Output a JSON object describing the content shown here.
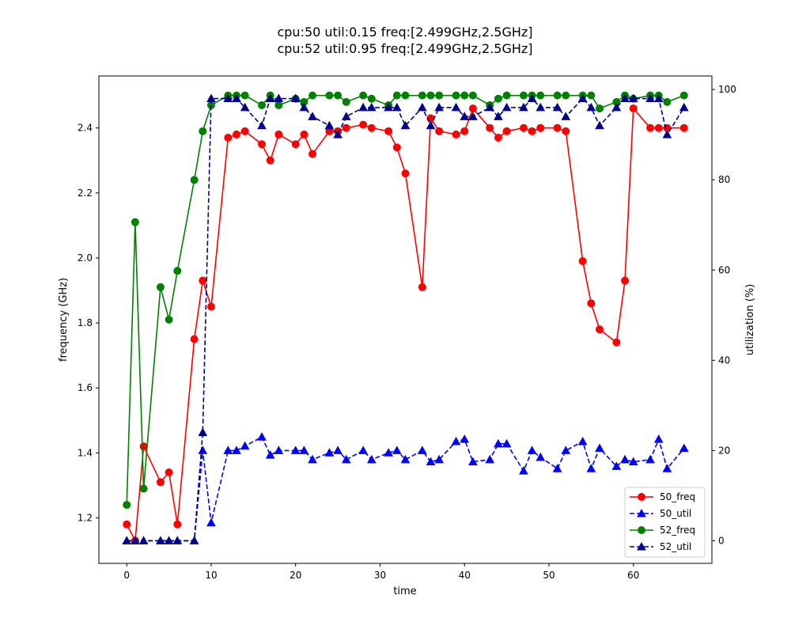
{
  "chart_data": {
    "type": "line",
    "title_lines": [
      "cpu:50 util:0.15 freq:[2.499GHz,2.5GHz]",
      "cpu:52 util:0.95 freq:[2.499GHz,2.5GHz]"
    ],
    "xlabel": "time",
    "ylabel_left": "frequency (GHz)",
    "ylabel_right": "utilization (%)",
    "xlim": [
      -3.3,
      69.3
    ],
    "ylim_left": [
      1.06,
      2.56
    ],
    "ylim_right": [
      -5,
      103
    ],
    "xticks": [
      0,
      10,
      20,
      30,
      40,
      50,
      60
    ],
    "yticks_left": [
      1.2,
      1.4,
      1.6,
      1.8,
      2.0,
      2.2,
      2.4
    ],
    "yticks_right": [
      0,
      20,
      40,
      60,
      80,
      100
    ],
    "legend_position": "lower right",
    "series": [
      {
        "name": "50_freq",
        "axis": "left",
        "color": "#ff0000",
        "linestyle": "solid",
        "marker": "circle",
        "points": [
          [
            0,
            1.18
          ],
          [
            1,
            1.13
          ],
          [
            2,
            1.42
          ],
          [
            4,
            1.31
          ],
          [
            5,
            1.34
          ],
          [
            6,
            1.18
          ],
          [
            8,
            1.75
          ],
          [
            9,
            1.93
          ],
          [
            10,
            1.85
          ],
          [
            12,
            2.37
          ],
          [
            13,
            2.38
          ],
          [
            14,
            2.39
          ],
          [
            16,
            2.35
          ],
          [
            17,
            2.3
          ],
          [
            18,
            2.38
          ],
          [
            20,
            2.35
          ],
          [
            21,
            2.38
          ],
          [
            22,
            2.32
          ],
          [
            24,
            2.39
          ],
          [
            25,
            2.39
          ],
          [
            26,
            2.4
          ],
          [
            28,
            2.41
          ],
          [
            29,
            2.4
          ],
          [
            31,
            2.39
          ],
          [
            32,
            2.34
          ],
          [
            33,
            2.26
          ],
          [
            35,
            1.91
          ],
          [
            36,
            2.43
          ],
          [
            37,
            2.39
          ],
          [
            39,
            2.38
          ],
          [
            40,
            2.39
          ],
          [
            41,
            2.46
          ],
          [
            43,
            2.4
          ],
          [
            44,
            2.37
          ],
          [
            45,
            2.39
          ],
          [
            47,
            2.4
          ],
          [
            48,
            2.39
          ],
          [
            49,
            2.4
          ],
          [
            51,
            2.4
          ],
          [
            52,
            2.39
          ],
          [
            54,
            1.99
          ],
          [
            55,
            1.86
          ],
          [
            56,
            1.78
          ],
          [
            58,
            1.74
          ],
          [
            59,
            1.93
          ],
          [
            60,
            2.46
          ],
          [
            62,
            2.4
          ],
          [
            63,
            2.4
          ],
          [
            64,
            2.4
          ],
          [
            66,
            2.4
          ]
        ]
      },
      {
        "name": "50_util",
        "axis": "right",
        "color": "#0000ff",
        "linestyle": "dashed",
        "marker": "triangle",
        "points": [
          [
            0,
            0
          ],
          [
            1,
            0
          ],
          [
            2,
            0
          ],
          [
            4,
            0
          ],
          [
            5,
            0
          ],
          [
            6,
            0
          ],
          [
            8,
            0
          ],
          [
            9,
            20
          ],
          [
            10,
            4
          ],
          [
            12,
            20
          ],
          [
            13,
            20
          ],
          [
            14,
            21
          ],
          [
            16,
            23
          ],
          [
            17,
            19
          ],
          [
            18,
            20
          ],
          [
            20,
            20
          ],
          [
            21,
            20
          ],
          [
            22,
            18
          ],
          [
            24,
            19.5
          ],
          [
            25,
            20
          ],
          [
            26,
            18
          ],
          [
            28,
            20
          ],
          [
            29,
            18
          ],
          [
            31,
            19.5
          ],
          [
            32,
            20
          ],
          [
            33,
            18
          ],
          [
            35,
            20
          ],
          [
            36,
            17.5
          ],
          [
            37,
            18
          ],
          [
            39,
            22
          ],
          [
            40,
            22.5
          ],
          [
            41,
            17.5
          ],
          [
            43,
            18
          ],
          [
            44,
            21.5
          ],
          [
            45,
            21.5
          ],
          [
            47,
            15.5
          ],
          [
            48,
            20
          ],
          [
            49,
            18.5
          ],
          [
            51,
            16
          ],
          [
            52,
            20
          ],
          [
            54,
            22
          ],
          [
            55,
            16
          ],
          [
            56,
            20.5
          ],
          [
            58,
            16.5
          ],
          [
            59,
            18
          ],
          [
            60,
            17.5
          ],
          [
            62,
            18
          ],
          [
            63,
            22.5
          ],
          [
            64,
            16
          ],
          [
            66,
            20.5
          ]
        ]
      },
      {
        "name": "52_freq",
        "axis": "left",
        "color": "#008000",
        "linestyle": "solid",
        "marker": "circle",
        "points": [
          [
            0,
            1.24
          ],
          [
            1,
            2.11
          ],
          [
            2,
            1.29
          ],
          [
            4,
            1.91
          ],
          [
            5,
            1.81
          ],
          [
            6,
            1.96
          ],
          [
            8,
            2.24
          ],
          [
            9,
            2.39
          ],
          [
            10,
            2.47
          ],
          [
            12,
            2.5
          ],
          [
            13,
            2.5
          ],
          [
            14,
            2.5
          ],
          [
            16,
            2.47
          ],
          [
            17,
            2.5
          ],
          [
            18,
            2.47
          ],
          [
            20,
            2.49
          ],
          [
            21,
            2.48
          ],
          [
            22,
            2.5
          ],
          [
            24,
            2.5
          ],
          [
            25,
            2.5
          ],
          [
            26,
            2.48
          ],
          [
            28,
            2.5
          ],
          [
            29,
            2.49
          ],
          [
            31,
            2.47
          ],
          [
            32,
            2.5
          ],
          [
            33,
            2.5
          ],
          [
            35,
            2.5
          ],
          [
            36,
            2.5
          ],
          [
            37,
            2.5
          ],
          [
            39,
            2.5
          ],
          [
            40,
            2.5
          ],
          [
            41,
            2.5
          ],
          [
            43,
            2.47
          ],
          [
            44,
            2.49
          ],
          [
            45,
            2.5
          ],
          [
            47,
            2.5
          ],
          [
            48,
            2.5
          ],
          [
            49,
            2.5
          ],
          [
            51,
            2.5
          ],
          [
            52,
            2.5
          ],
          [
            54,
            2.5
          ],
          [
            55,
            2.5
          ],
          [
            56,
            2.46
          ],
          [
            58,
            2.48
          ],
          [
            59,
            2.5
          ],
          [
            60,
            2.49
          ],
          [
            62,
            2.5
          ],
          [
            63,
            2.5
          ],
          [
            64,
            2.48
          ],
          [
            66,
            2.5
          ]
        ]
      },
      {
        "name": "52_util",
        "axis": "right",
        "color": "#00008b",
        "linestyle": "dashed",
        "marker": "triangle",
        "points": [
          [
            0,
            0
          ],
          [
            1,
            0
          ],
          [
            2,
            0
          ],
          [
            4,
            0
          ],
          [
            5,
            0
          ],
          [
            6,
            0
          ],
          [
            8,
            0
          ],
          [
            9,
            24
          ],
          [
            10,
            98
          ],
          [
            12,
            98
          ],
          [
            13,
            98
          ],
          [
            14,
            96
          ],
          [
            16,
            92
          ],
          [
            17,
            98
          ],
          [
            18,
            98
          ],
          [
            20,
            98
          ],
          [
            21,
            96
          ],
          [
            22,
            94
          ],
          [
            24,
            92
          ],
          [
            25,
            90
          ],
          [
            26,
            94
          ],
          [
            28,
            96
          ],
          [
            29,
            96
          ],
          [
            31,
            96
          ],
          [
            32,
            96
          ],
          [
            33,
            92
          ],
          [
            35,
            96
          ],
          [
            36,
            92
          ],
          [
            37,
            96
          ],
          [
            39,
            96
          ],
          [
            40,
            94
          ],
          [
            41,
            94
          ],
          [
            43,
            96
          ],
          [
            44,
            94
          ],
          [
            45,
            96
          ],
          [
            47,
            96
          ],
          [
            48,
            98
          ],
          [
            49,
            96
          ],
          [
            51,
            96
          ],
          [
            52,
            94
          ],
          [
            54,
            98
          ],
          [
            55,
            96
          ],
          [
            56,
            92
          ],
          [
            58,
            96
          ],
          [
            59,
            98
          ],
          [
            60,
            98
          ],
          [
            62,
            98
          ],
          [
            63,
            98
          ],
          [
            64,
            90
          ],
          [
            66,
            96
          ]
        ]
      }
    ]
  }
}
